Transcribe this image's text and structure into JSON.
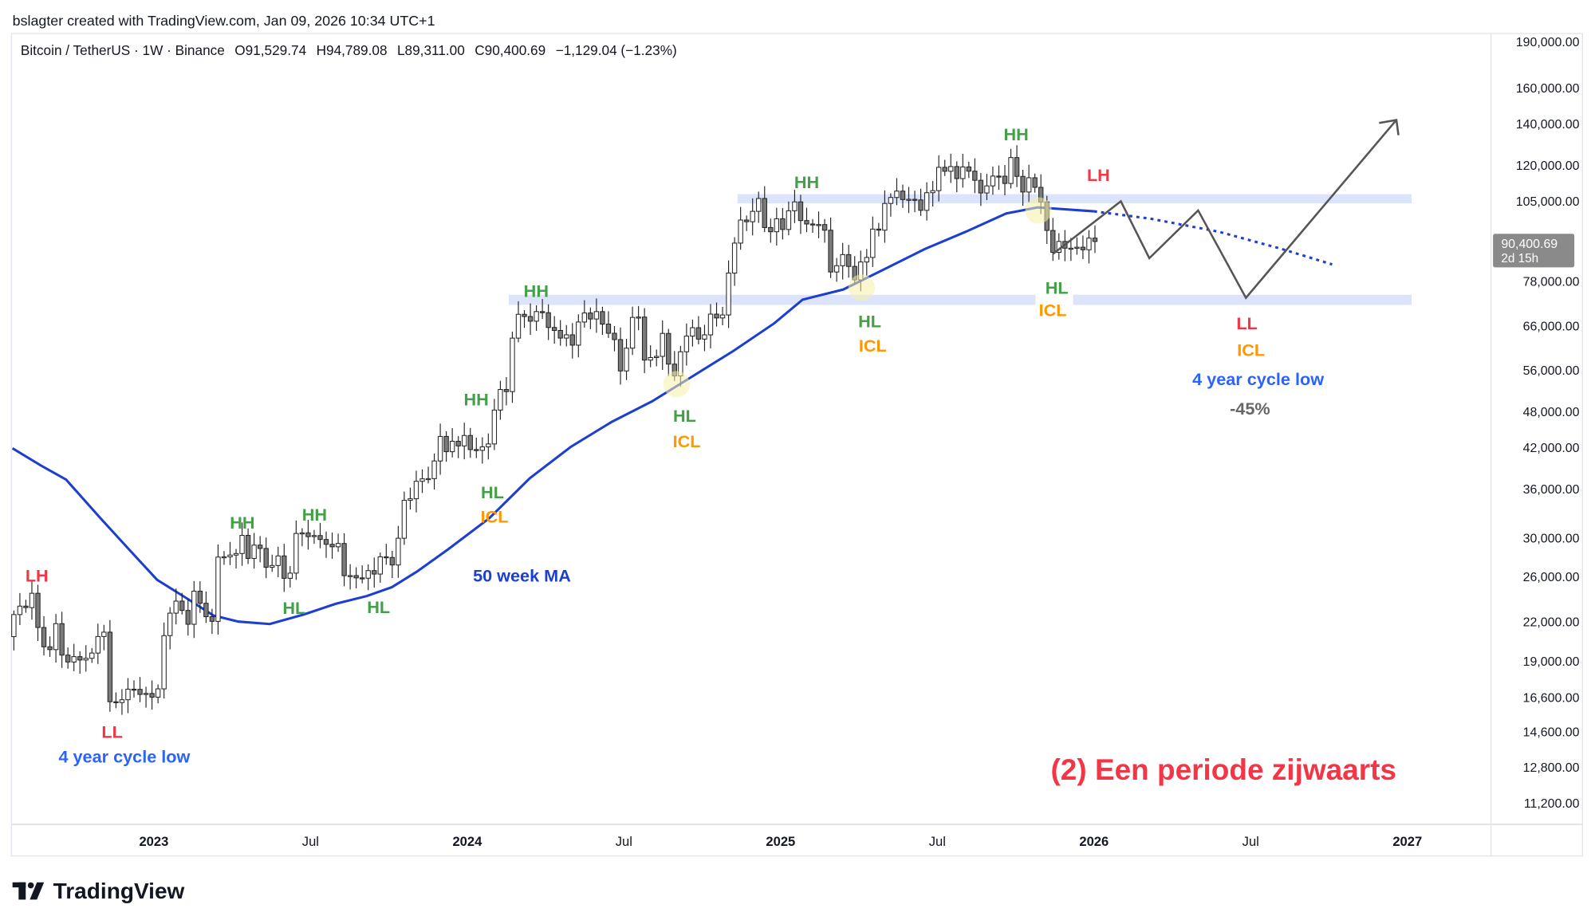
{
  "header": {
    "credit": "bslagter created with TradingView.com, Jan 09, 2026 10:34 UTC+1"
  },
  "legend": {
    "symbol": "Bitcoin / TetherUS · 1W · Binance",
    "open": "O91,529.74",
    "high": "H94,789.08",
    "low": "L89,311.00",
    "close": "C90,400.69",
    "change": "−1,129.04 (−1.23%)"
  },
  "price_tag": {
    "price": "90,400.69",
    "countdown": "2d 15h"
  },
  "logo": {
    "text": "TradingView"
  },
  "colors": {
    "green": "#43a047",
    "red": "#f23645",
    "orange": "#ff9800",
    "blue": "#2962ff",
    "ma": "#1d3fcf",
    "band": "#dbe4fb"
  },
  "annotations": {
    "lh1": "LH",
    "ll1": "LL",
    "cycle1": "4 year cycle low",
    "hh1": "HH",
    "hl1": "HL",
    "hh2": "HH",
    "hl2": "HL",
    "hl3": "HL",
    "icl3": "ICL",
    "ma_label": "50 week MA",
    "hh3": "HH",
    "hh4": "HH",
    "hl4": "HL",
    "icl4": "ICL",
    "hh5": "HH",
    "hl5": "HL",
    "icl5": "ICL",
    "hh6": "HH",
    "lh2": "LH",
    "hl6": "HL",
    "icl6": "ICL",
    "ll2": "LL",
    "icl7": "ICL",
    "cycle2": "4 year cycle low",
    "drop": "-45%",
    "title": "(2) Een periode zijwaarts"
  },
  "chart_data": {
    "type": "candlestick",
    "interval": "1W",
    "scale": "log",
    "first_week": "2022-07-18",
    "first_open": 20800,
    "closes": [
      22580,
      23300,
      23170,
      24440,
      21520,
      20030,
      19820,
      21830,
      19420,
      18930,
      19310,
      19070,
      19190,
      19570,
      20810,
      21150,
      16330,
      16280,
      16450,
      17110,
      17100,
      16780,
      16840,
      16610,
      17130,
      20880,
      22700,
      23740,
      22930,
      21780,
      24630,
      23550,
      22400,
      22020,
      27960,
      27990,
      28170,
      28330,
      30310,
      27820,
      29230,
      28870,
      26920,
      27100,
      28080,
      25840,
      26340,
      30530,
      30590,
      30170,
      30290,
      29850,
      29320,
      29050,
      29410,
      26090,
      26100,
      25880,
      25850,
      26590,
      26250,
      27990,
      27920,
      27150,
      29990,
      34530,
      34730,
      37060,
      37400,
      37430,
      39970,
      43790,
      41370,
      43010,
      42270,
      43940,
      41700,
      41580,
      42120,
      42580,
      48300,
      52140,
      51730,
      63110,
      68950,
      68390,
      67210,
      69650,
      69360,
      65660,
      64940,
      63120,
      63890,
      61480,
      67000,
      69290,
      67760,
      69650,
      66490,
      64260,
      62770,
      55860,
      60800,
      68160,
      68250,
      58160,
      58710,
      58970,
      64220,
      57300,
      54840,
      59990,
      63580,
      65600,
      62880,
      63880,
      69000,
      68020,
      68780,
      80370,
      89850,
      97900,
      97280,
      101110,
      106060,
      95200,
      93720,
      98360,
      94520,
      101330,
      104720,
      97700,
      96470,
      96120,
      96260,
      94270,
      80700,
      82600,
      86080,
      82390,
      78370,
      83760,
      85180,
      94650,
      94280,
      104120,
      106450,
      109010,
      105640,
      105730,
      105490,
      101480,
      108360,
      109200,
      119080,
      117360,
      119430,
      114200,
      119270,
      117400,
      113480,
      108250,
      111150,
      115270,
      115230,
      112160,
      123480,
      115150,
      108640,
      114560,
      110540,
      104710,
      94180,
      86830,
      90400,
      88170,
      88170,
      88480,
      87650,
      91530,
      90400.69
    ],
    "ma50": {
      "name": "50 week MA",
      "points": [
        [
          2022.549,
          41900
        ],
        [
          2022.64,
          39300
        ],
        [
          2022.72,
          37300
        ],
        [
          2022.83,
          32300
        ],
        [
          2022.92,
          28800
        ],
        [
          2023.01,
          25700
        ],
        [
          2023.11,
          23900
        ],
        [
          2023.19,
          22500
        ],
        [
          2023.27,
          22000
        ],
        [
          2023.37,
          21800
        ],
        [
          2023.48,
          22600
        ],
        [
          2023.58,
          23500
        ],
        [
          2023.68,
          24200
        ],
        [
          2023.76,
          25000
        ],
        [
          2023.84,
          26500
        ],
        [
          2023.94,
          28800
        ],
        [
          2024.07,
          32300
        ],
        [
          2024.2,
          37500
        ],
        [
          2024.33,
          42100
        ],
        [
          2024.46,
          46200
        ],
        [
          2024.59,
          49900
        ],
        [
          2024.72,
          54800
        ],
        [
          2024.85,
          60200
        ],
        [
          2024.98,
          66700
        ],
        [
          2025.07,
          72800
        ],
        [
          2025.2,
          75600
        ],
        [
          2025.33,
          81500
        ],
        [
          2025.46,
          87900
        ],
        [
          2025.59,
          93700
        ],
        [
          2025.72,
          100300
        ],
        [
          2025.82,
          102600
        ],
        [
          2026.0,
          101100
        ]
      ],
      "projection": [
        [
          2026.0,
          101100
        ],
        [
          2026.18,
          98400
        ],
        [
          2026.4,
          93700
        ],
        [
          2026.6,
          87900
        ],
        [
          2026.76,
          83000
        ]
      ]
    },
    "y_ticks": [
      "190,000.00",
      "160,000.00",
      "140,000.00",
      "120,000.00",
      "105,000.00",
      "78,000.00",
      "66,000.00",
      "56,000.00",
      "48,000.00",
      "42,000.00",
      "36,000.00",
      "30,000.00",
      "26,000.00",
      "22,000.00",
      "19,000.00",
      "16,600.00",
      "14,600.00",
      "12,800.00",
      "11,200.00"
    ],
    "y_tick_values": [
      190000,
      160000,
      140000,
      120000,
      105000,
      78000,
      66000,
      56000,
      48000,
      42000,
      36000,
      30000,
      26000,
      22000,
      19000,
      16600,
      14600,
      12800,
      11200
    ],
    "x_ticks": [
      "2023",
      "Jul",
      "2024",
      "Jul",
      "2025",
      "Jul",
      "2026",
      "Jul",
      "2027"
    ],
    "x_tick_values": [
      2023,
      2023.5,
      2024,
      2024.5,
      2025,
      2025.5,
      2026,
      2026.5,
      2027
    ]
  }
}
